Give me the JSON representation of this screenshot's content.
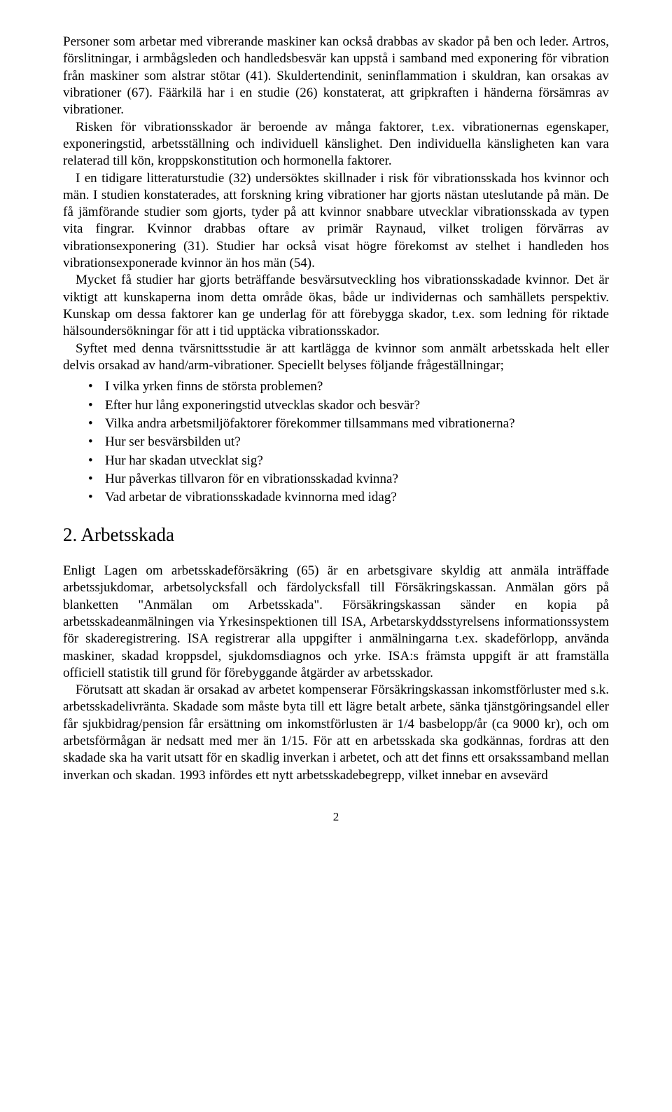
{
  "paragraphs": {
    "p1": "Personer som arbetar med vibrerande maskiner kan också drabbas av skador på ben och leder. Artros, förslitningar, i armbågsleden och handledsbesvär kan uppstå i samband med exponering för vibration från maskiner som alstrar stötar (41). Skuldertendinit, seninflammation i skuldran, kan orsakas av vibrationer (67). Fäärkilä har i en studie (26) konstaterat, att gripkraften i händerna försämras av vibrationer.",
    "p2": "Risken för vibrationsskador är beroende av många faktorer, t.ex. vibrationernas egenskaper, exponeringstid, arbetsställning och individuell känslighet. Den individuella känsligheten kan vara relaterad till kön, kroppskonstitution och hormonella faktorer.",
    "p3": "I en tidigare litteraturstudie (32) undersöktes skillnader i risk för vibrationsskada hos kvinnor och män. I studien konstaterades, att forskning kring vibrationer har gjorts nästan uteslutande på män. De få jämförande studier som gjorts, tyder på att kvinnor snabbare utvecklar vibrationsskada av typen vita fingrar. Kvinnor drabbas oftare av primär Raynaud, vilket troligen förvärras av vibrationsexponering (31). Studier har också visat högre förekomst av stelhet i handleden hos vibrationsexponerade kvinnor än hos män (54).",
    "p4": "Mycket få studier har gjorts beträffande besvärsutveckling hos vibrationsskadade kvinnor. Det är viktigt att kunskaperna inom detta område ökas, både ur individernas och samhällets perspektiv. Kunskap om dessa faktorer kan ge underlag för att förebygga skador, t.ex. som ledning för riktade hälsoundersökningar för att i tid upptäcka vibrationsskador.",
    "p5": "Syftet med denna tvärsnittsstudie är att kartlägga de kvinnor som anmält arbetsskada helt eller delvis orsakad av hand/arm-vibrationer. Speciellt belyses följande frågeställningar;"
  },
  "bullets": [
    "I vilka yrken finns de största problemen?",
    "Efter hur lång exponeringstid utvecklas skador och besvär?",
    "Vilka andra arbetsmiljöfaktorer förekommer tillsammans med vibrationerna?",
    "Hur ser besvärsbilden ut?",
    "Hur har skadan utvecklat sig?",
    "Hur påverkas tillvaron för en vibrationsskadad kvinna?",
    "Vad arbetar de vibrationsskadade kvinnorna med idag?"
  ],
  "section": {
    "heading": "2. Arbetsskada",
    "p1": "Enligt Lagen om arbetsskadeförsäkring (65) är en arbetsgivare skyldig att anmäla inträffade arbetssjukdomar, arbetsolycksfall och färdolycksfall till Försäkringskassan. Anmälan görs på blanketten \"Anmälan om Arbetsskada\". Försäkringskassan sänder en kopia på arbetsskadeanmälningen via Yrkesinspektionen till ISA, Arbetarskyddsstyrelsens informationssystem för skaderegistrering. ISA registrerar alla uppgifter i anmälningarna t.ex. skadeförlopp, använda maskiner, skadad kroppsdel, sjukdomsdiagnos och yrke. ISA:s främsta uppgift är att framställa officiell statistik till grund för förebyggande åtgärder av arbetsskador.",
    "p2": "Förutsatt att skadan är orsakad av arbetet kompenserar Försäkringskassan inkomstförluster med s.k. arbetsskadelivränta. Skadade som måste byta till ett lägre betalt arbete, sänka tjänstgöringsandel eller får sjukbidrag/pension får ersättning om inkomstförlusten är 1/4 basbelopp/år (ca 9000 kr), och om arbetsförmågan är nedsatt med mer än 1/15. För att en arbetsskada ska godkännas, fordras att den skadade ska ha varit utsatt för en skadlig inverkan i arbetet, och att det finns ett orsakssamband mellan inverkan och skadan. 1993 infördes ett nytt arbetsskadebegrepp, vilket innebar en avsevärd"
  },
  "pageNumber": "2"
}
